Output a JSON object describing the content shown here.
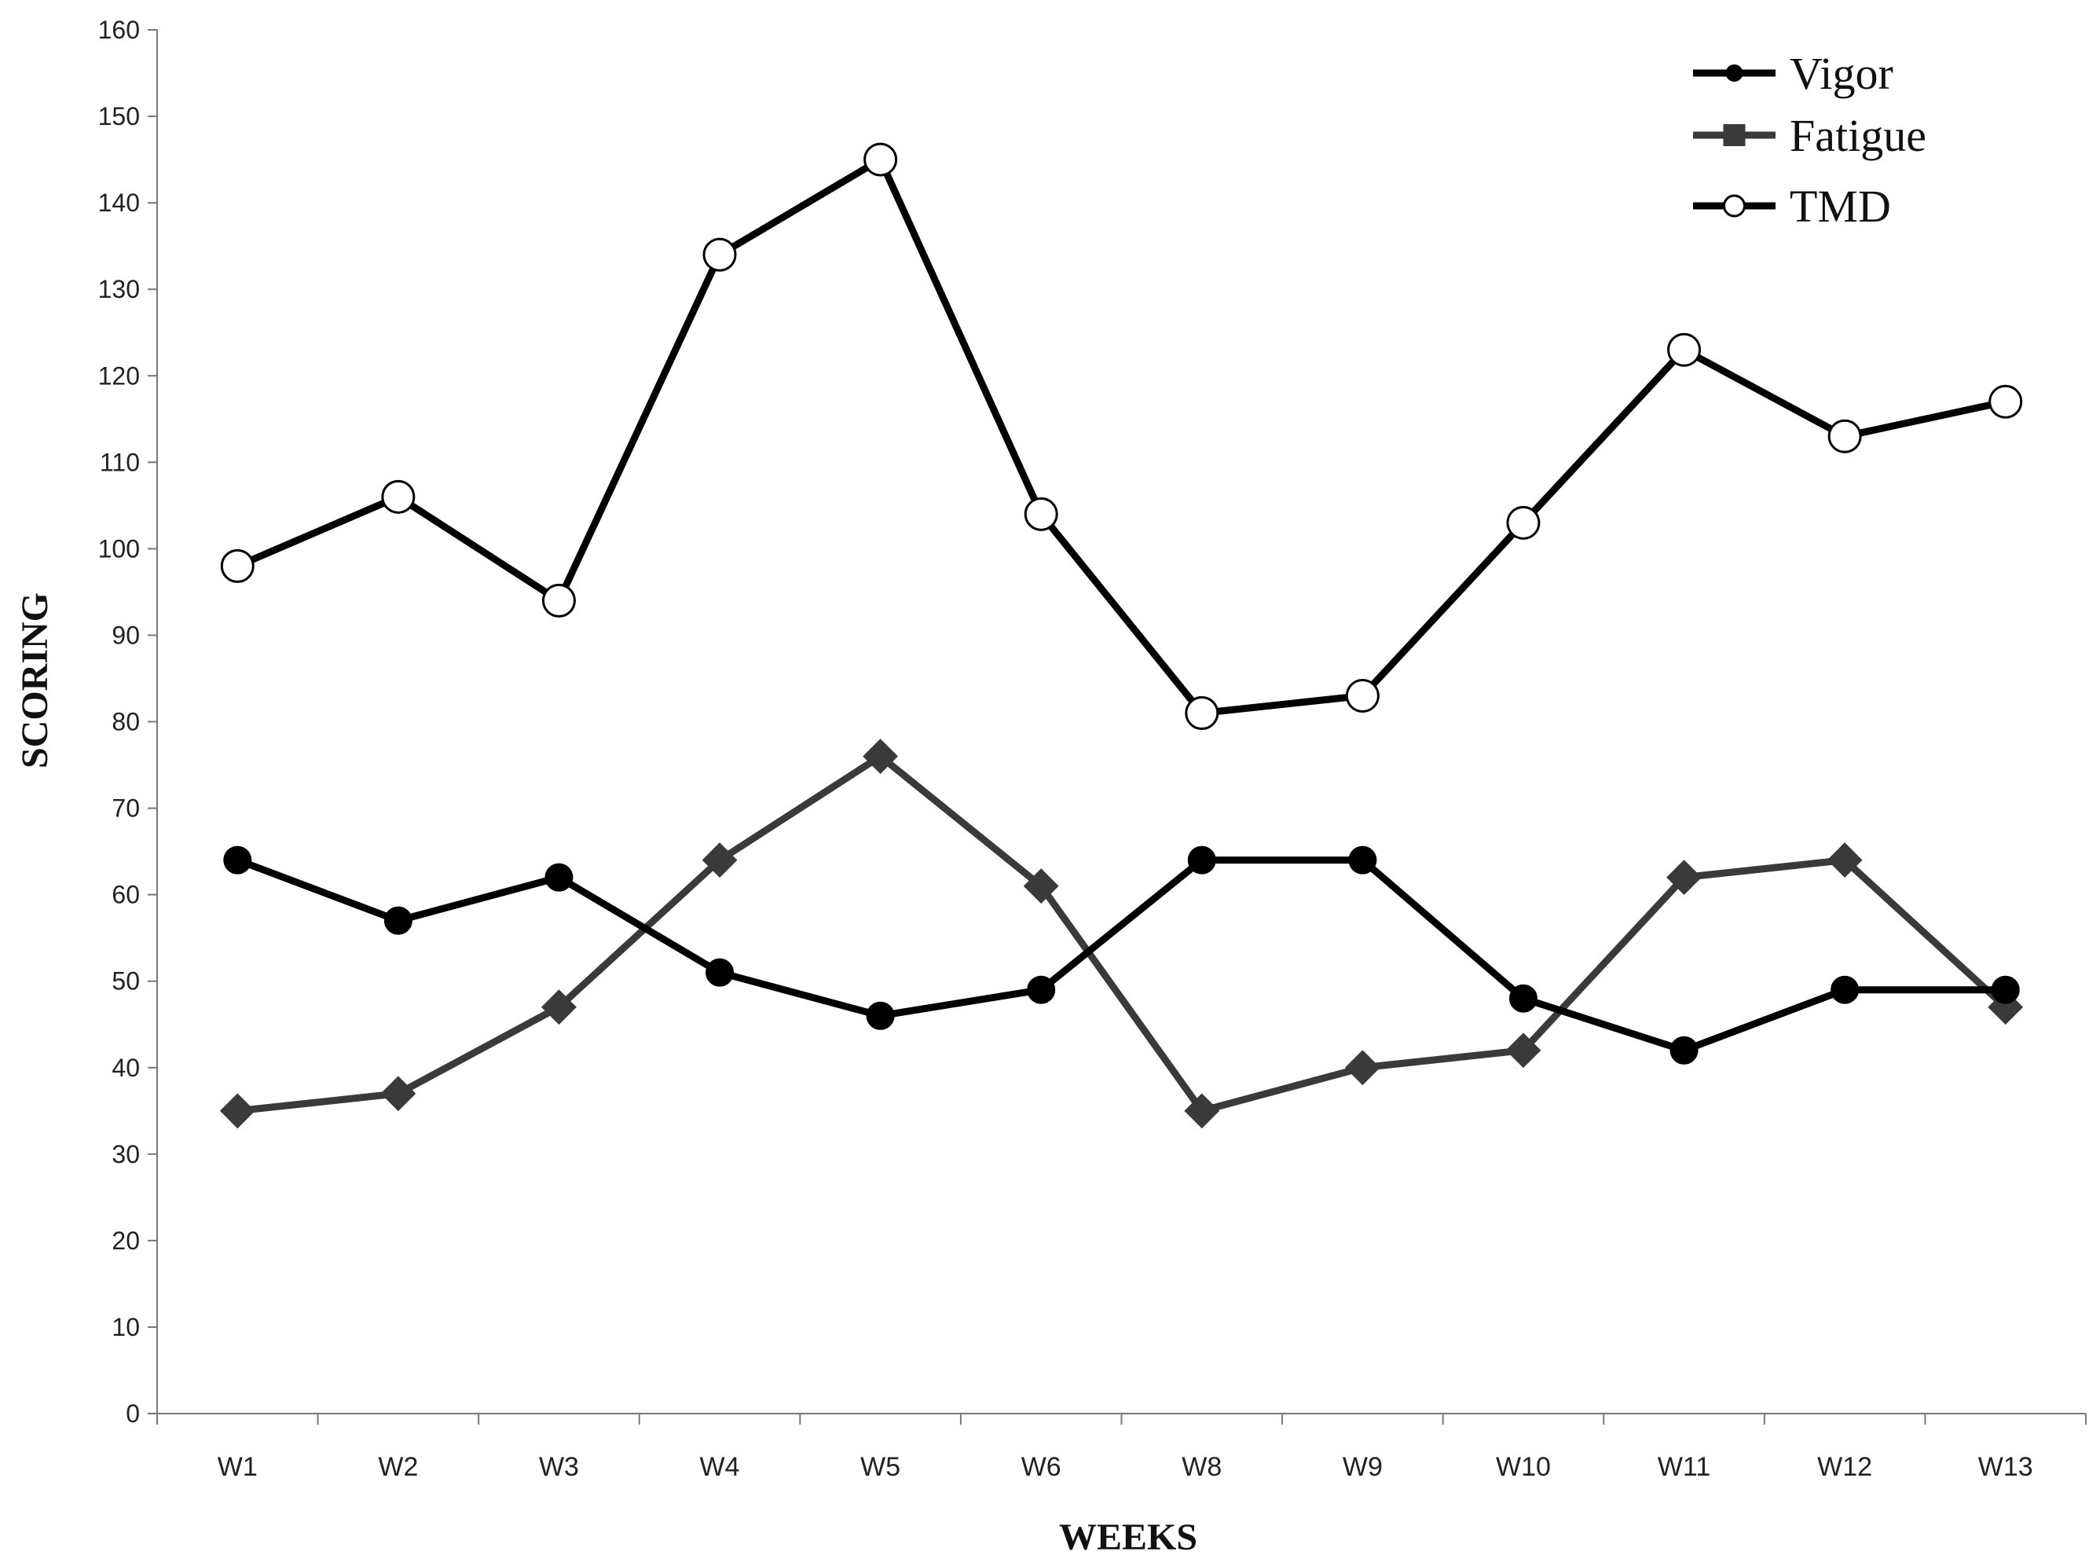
{
  "chart_data": {
    "type": "line",
    "title": "",
    "xlabel": "WEEKS",
    "ylabel": "SCORING",
    "categories": [
      "W1",
      "W2",
      "W3",
      "W4",
      "W5",
      "W6",
      "W8",
      "W9",
      "W10",
      "W11",
      "W12",
      "W13"
    ],
    "ylim": [
      0,
      160
    ],
    "yticks": [
      0,
      10,
      20,
      30,
      40,
      50,
      60,
      70,
      80,
      90,
      100,
      110,
      120,
      130,
      140,
      150,
      160
    ],
    "grid": false,
    "legend_position": "top-right",
    "series": [
      {
        "name": "Vigor",
        "values": [
          64,
          57,
          62,
          51,
          46,
          49,
          64,
          64,
          48,
          42,
          49,
          49
        ],
        "color": "#000000",
        "marker": "circle-filled"
      },
      {
        "name": "Fatigue",
        "values": [
          35,
          37,
          47,
          64,
          76,
          61,
          35,
          40,
          42,
          62,
          64,
          47
        ],
        "color": "#3a3a3a",
        "marker": "diamond"
      },
      {
        "name": "TMD",
        "values": [
          98,
          106,
          94,
          134,
          145,
          104,
          81,
          83,
          103,
          123,
          113,
          117
        ],
        "color": "#000000",
        "marker": "circle-open"
      }
    ],
    "legend_markers": {
      "Vigor": "circle-filled",
      "Fatigue": "square",
      "TMD": "circle-open"
    }
  }
}
